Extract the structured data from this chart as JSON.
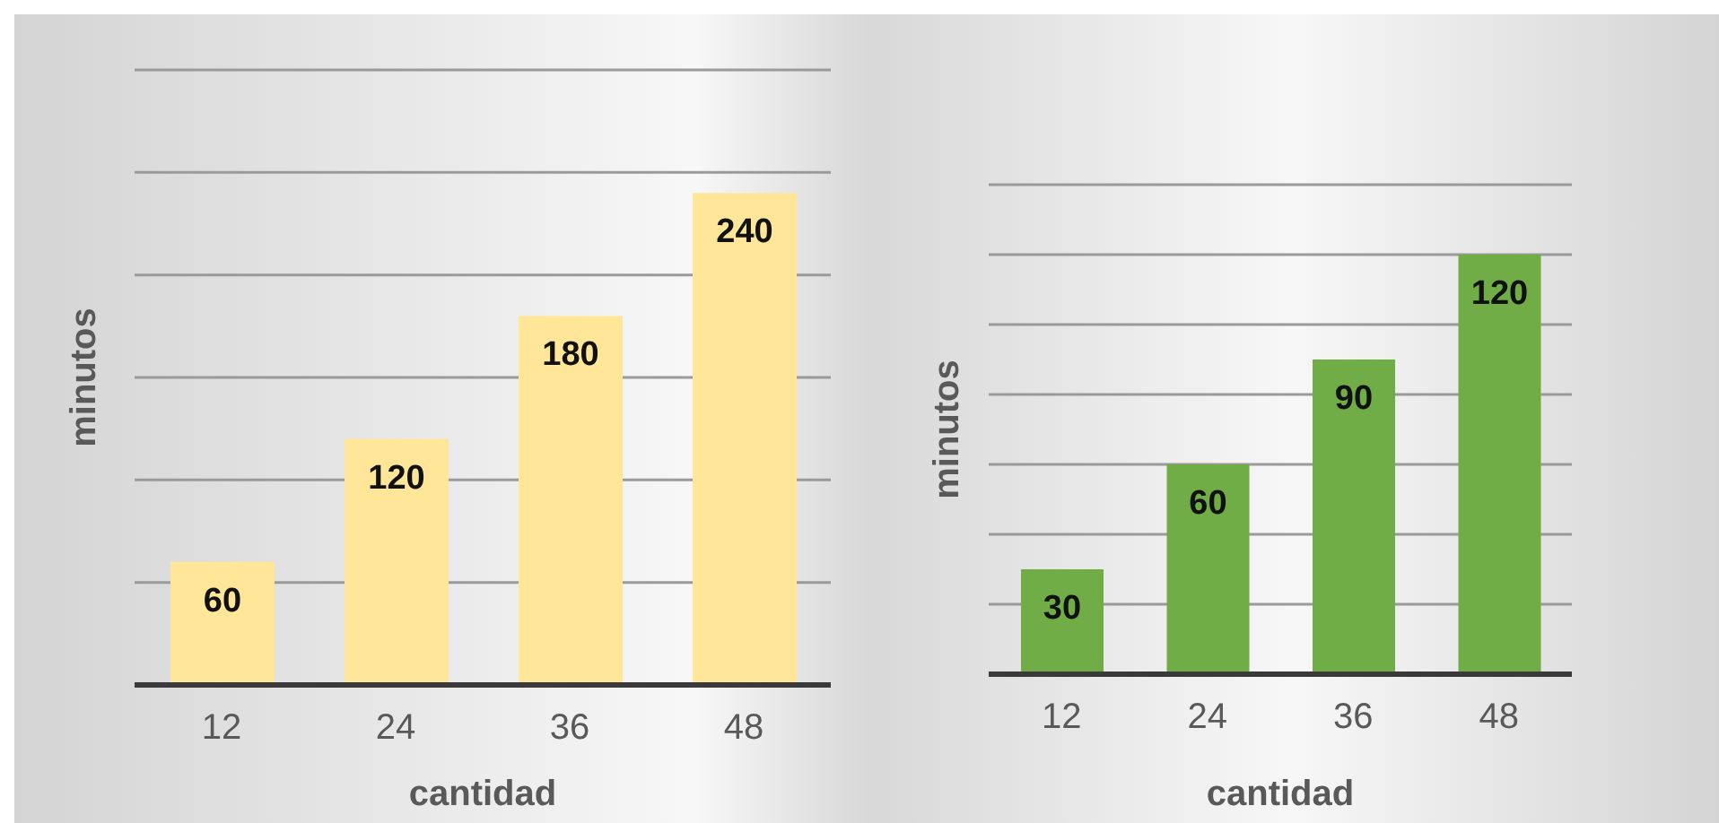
{
  "chart_data": [
    {
      "type": "bar",
      "xlabel": "cantidad",
      "ylabel": "minutos",
      "categories": [
        "12",
        "24",
        "36",
        "48"
      ],
      "values": [
        60,
        120,
        180,
        240
      ],
      "color": "#ffe699",
      "ylim": [
        0,
        300
      ],
      "yticks": [
        {
          "value": 0,
          "label": null
        },
        {
          "value": 50,
          "label": null
        },
        {
          "value": 100,
          "label": null
        },
        {
          "value": 150,
          "label": null
        },
        {
          "value": 200,
          "label": null
        },
        {
          "value": 250,
          "label": null
        },
        {
          "value": 300,
          "label": null
        }
      ],
      "tick_labels": "x",
      "grid": "y",
      "data_labels": true
    },
    {
      "type": "bar",
      "xlabel": "cantidad",
      "ylabel": "minutos",
      "categories": [
        "12",
        "24",
        "36",
        "48"
      ],
      "values": [
        30,
        60,
        90,
        120
      ],
      "color": "#70ad47",
      "ylim": [
        0,
        140
      ],
      "yticks": [
        {
          "value": 0,
          "label": null
        },
        {
          "value": 20,
          "label": null
        },
        {
          "value": 40,
          "label": null
        },
        {
          "value": 60,
          "label": null
        },
        {
          "value": 80,
          "label": null
        },
        {
          "value": 100,
          "label": null
        },
        {
          "value": 120,
          "label": null
        },
        {
          "value": 140,
          "label": null
        }
      ],
      "tick_labels": "x",
      "grid": "y",
      "data_labels": true
    }
  ]
}
